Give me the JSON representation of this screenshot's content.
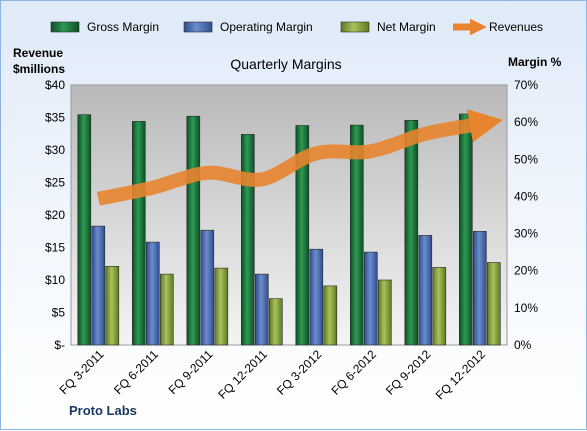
{
  "chart_data": {
    "type": "bar",
    "title": "Quarterly Margins",
    "categories": [
      "FQ 3-2011",
      "FQ 6-2011",
      "FQ 9-2011",
      "FQ 12-2011",
      "FQ 3-2012",
      "FQ 6-2012",
      "FQ 9-2012",
      "FQ 12-2012"
    ],
    "series": [
      {
        "name": "Gross Margin",
        "axis": "right",
        "color": "#1a7a3e",
        "values": [
          62,
          60.2,
          61.6,
          56.7,
          59.1,
          59.2,
          60.5,
          62.2
        ]
      },
      {
        "name": "Operating Margin",
        "axis": "right",
        "color": "#4f6fb0",
        "values": [
          32,
          27.7,
          30.9,
          19.1,
          25.8,
          25,
          29.5,
          30.6
        ]
      },
      {
        "name": "Net Margin",
        "axis": "right",
        "color": "#8aa63f",
        "values": [
          21.2,
          19.1,
          20.7,
          12.5,
          15.9,
          17.5,
          20.9,
          22.2
        ]
      },
      {
        "name": "Revenues",
        "axis": "left",
        "type": "line",
        "color": "#e8842e",
        "values": [
          22.5,
          24.2,
          26.5,
          25.5,
          29.5,
          29.8,
          32.5,
          34
        ]
      }
    ],
    "yleft": {
      "label_line1": "Revenue",
      "label_line2": "$millions",
      "range": [
        0,
        40
      ],
      "ticks": [
        "$-",
        "$5",
        "$10",
        "$15",
        "$20",
        "$25",
        "$30",
        "$35",
        "$40"
      ]
    },
    "yright": {
      "label": "Margin %",
      "range": [
        0,
        70
      ],
      "ticks": [
        "0%",
        "10%",
        "20%",
        "30%",
        "40%",
        "50%",
        "60%",
        "70%"
      ]
    },
    "grid": false,
    "legend_position": "top",
    "footer": "Proto Labs"
  }
}
